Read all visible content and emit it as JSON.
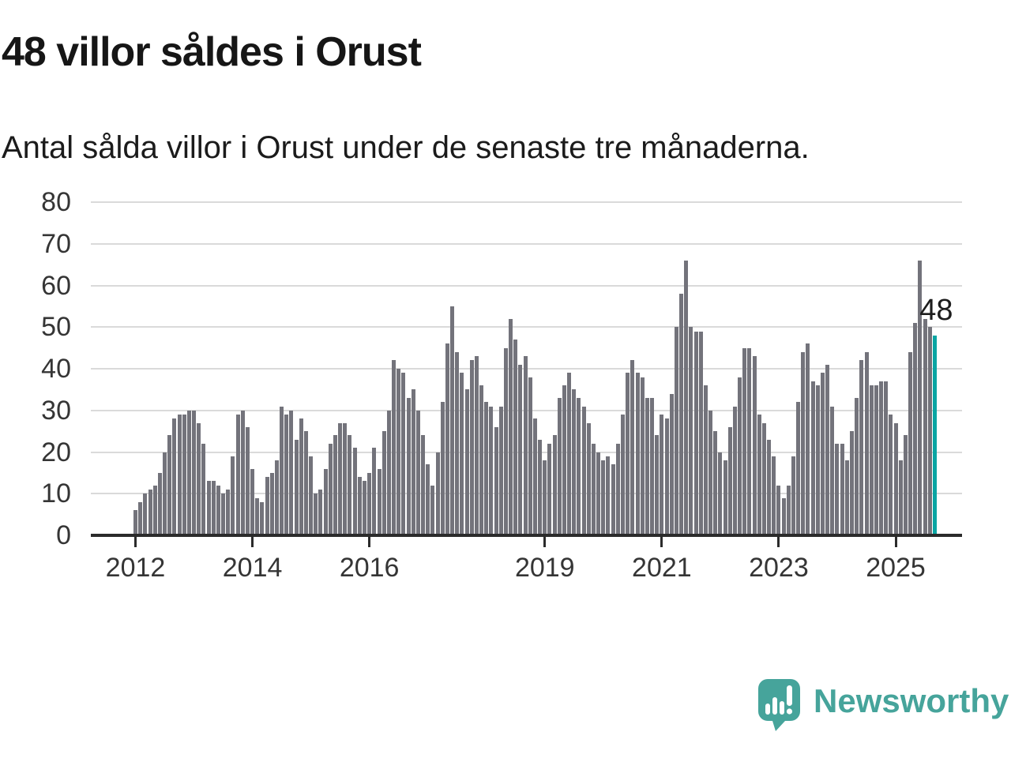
{
  "title": "48 villor såldes i Orust",
  "subtitle": "Antal sålda villor i Orust under de senaste tre månaderna.",
  "annotation": {
    "label": "48"
  },
  "logo": {
    "text": "Newsworthy",
    "icon": "newsworthy-speech-bubble-bar-chart-icon"
  },
  "colors": {
    "bar": "#73737b",
    "highlight": "#0aa5a3",
    "grid": "#dadada",
    "axis": "#2b2b2b",
    "text": "#161616",
    "logo": "#46a49b"
  },
  "chart_data": {
    "type": "bar",
    "title": "48 villor såldes i Orust",
    "subtitle": "Antal sålda villor i Orust under de senaste tre månaderna.",
    "xlabel": "",
    "ylabel": "",
    "x_start": "2012-01",
    "x_interval": "month",
    "ylim": [
      0,
      80
    ],
    "grid": true,
    "legend": false,
    "yticks": [
      0,
      10,
      20,
      30,
      40,
      50,
      60,
      70,
      80
    ],
    "xticks": [
      {
        "label": "2012",
        "month_index": 0
      },
      {
        "label": "2014",
        "month_index": 24
      },
      {
        "label": "2016",
        "month_index": 48
      },
      {
        "label": "2019",
        "month_index": 84
      },
      {
        "label": "2021",
        "month_index": 108
      },
      {
        "label": "2023",
        "month_index": 132
      },
      {
        "label": "2025",
        "month_index": 156
      }
    ],
    "values": [
      6,
      8,
      10,
      11,
      12,
      15,
      20,
      24,
      28,
      29,
      29,
      30,
      30,
      27,
      22,
      13,
      13,
      12,
      10,
      11,
      19,
      29,
      30,
      26,
      16,
      9,
      8,
      14,
      15,
      18,
      31,
      29,
      30,
      23,
      28,
      25,
      19,
      10,
      11,
      16,
      22,
      24,
      27,
      27,
      24,
      21,
      14,
      13,
      15,
      21,
      16,
      25,
      30,
      42,
      40,
      39,
      33,
      35,
      30,
      24,
      17,
      12,
      20,
      32,
      46,
      55,
      44,
      39,
      35,
      42,
      43,
      36,
      32,
      31,
      26,
      31,
      45,
      52,
      47,
      41,
      43,
      38,
      28,
      23,
      18,
      22,
      24,
      33,
      36,
      39,
      35,
      33,
      31,
      27,
      22,
      20,
      18,
      19,
      17,
      22,
      29,
      39,
      42,
      39,
      38,
      33,
      33,
      24,
      29,
      28,
      34,
      50,
      58,
      66,
      50,
      49,
      49,
      36,
      30,
      25,
      20,
      18,
      26,
      31,
      38,
      45,
      45,
      43,
      29,
      27,
      23,
      19,
      12,
      9,
      12,
      19,
      32,
      44,
      46,
      37,
      36,
      39,
      41,
      31,
      22,
      22,
      18,
      25,
      33,
      42,
      44,
      36,
      36,
      37,
      37,
      29,
      27,
      18,
      24,
      44,
      51,
      66,
      52,
      50,
      48
    ],
    "highlight_last_bar": true,
    "highlight_label": "48"
  }
}
